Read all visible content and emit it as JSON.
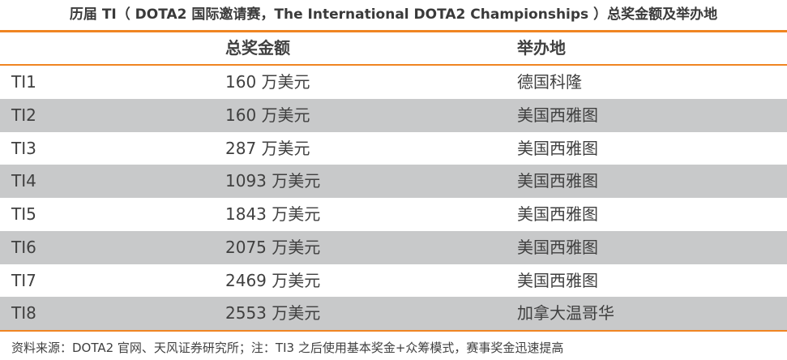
{
  "title": "历届 TI（ DOTA2 国际邀请赛，The International DOTA2 Championships ）总奖金额及举办地",
  "headers": [
    "",
    "总奖金额",
    "举办地"
  ],
  "rows": [
    {
      "name": "TI1",
      "prize": "160 万美元",
      "venue": "德国科隆"
    },
    {
      "name": "TI2",
      "prize": "160 万美元",
      "venue": "美国西雅图"
    },
    {
      "name": "TI3",
      "prize": "287 万美元",
      "venue": "美国西雅图"
    },
    {
      "name": "TI4",
      "prize": "1093 万美元",
      "venue": "美国西雅图"
    },
    {
      "name": "TI5",
      "prize": "1843 万美元",
      "venue": "美国西雅图"
    },
    {
      "name": "TI6",
      "prize": "2075 万美元",
      "venue": "美国西雅图"
    },
    {
      "name": "TI7",
      "prize": "2469 万美元",
      "venue": "美国西雅图"
    },
    {
      "name": "TI8",
      "prize": "2553 万美元",
      "venue": "加拿大温哥华"
    }
  ],
  "footnote": "资料来源：DOTA2 官网、天风证券研究所；注：TI3 之后使用基本奖金+众筹模式，赛事奖金迅速提高",
  "colors": {
    "accent": "#f08522",
    "stripe": "#c8c9ca"
  }
}
